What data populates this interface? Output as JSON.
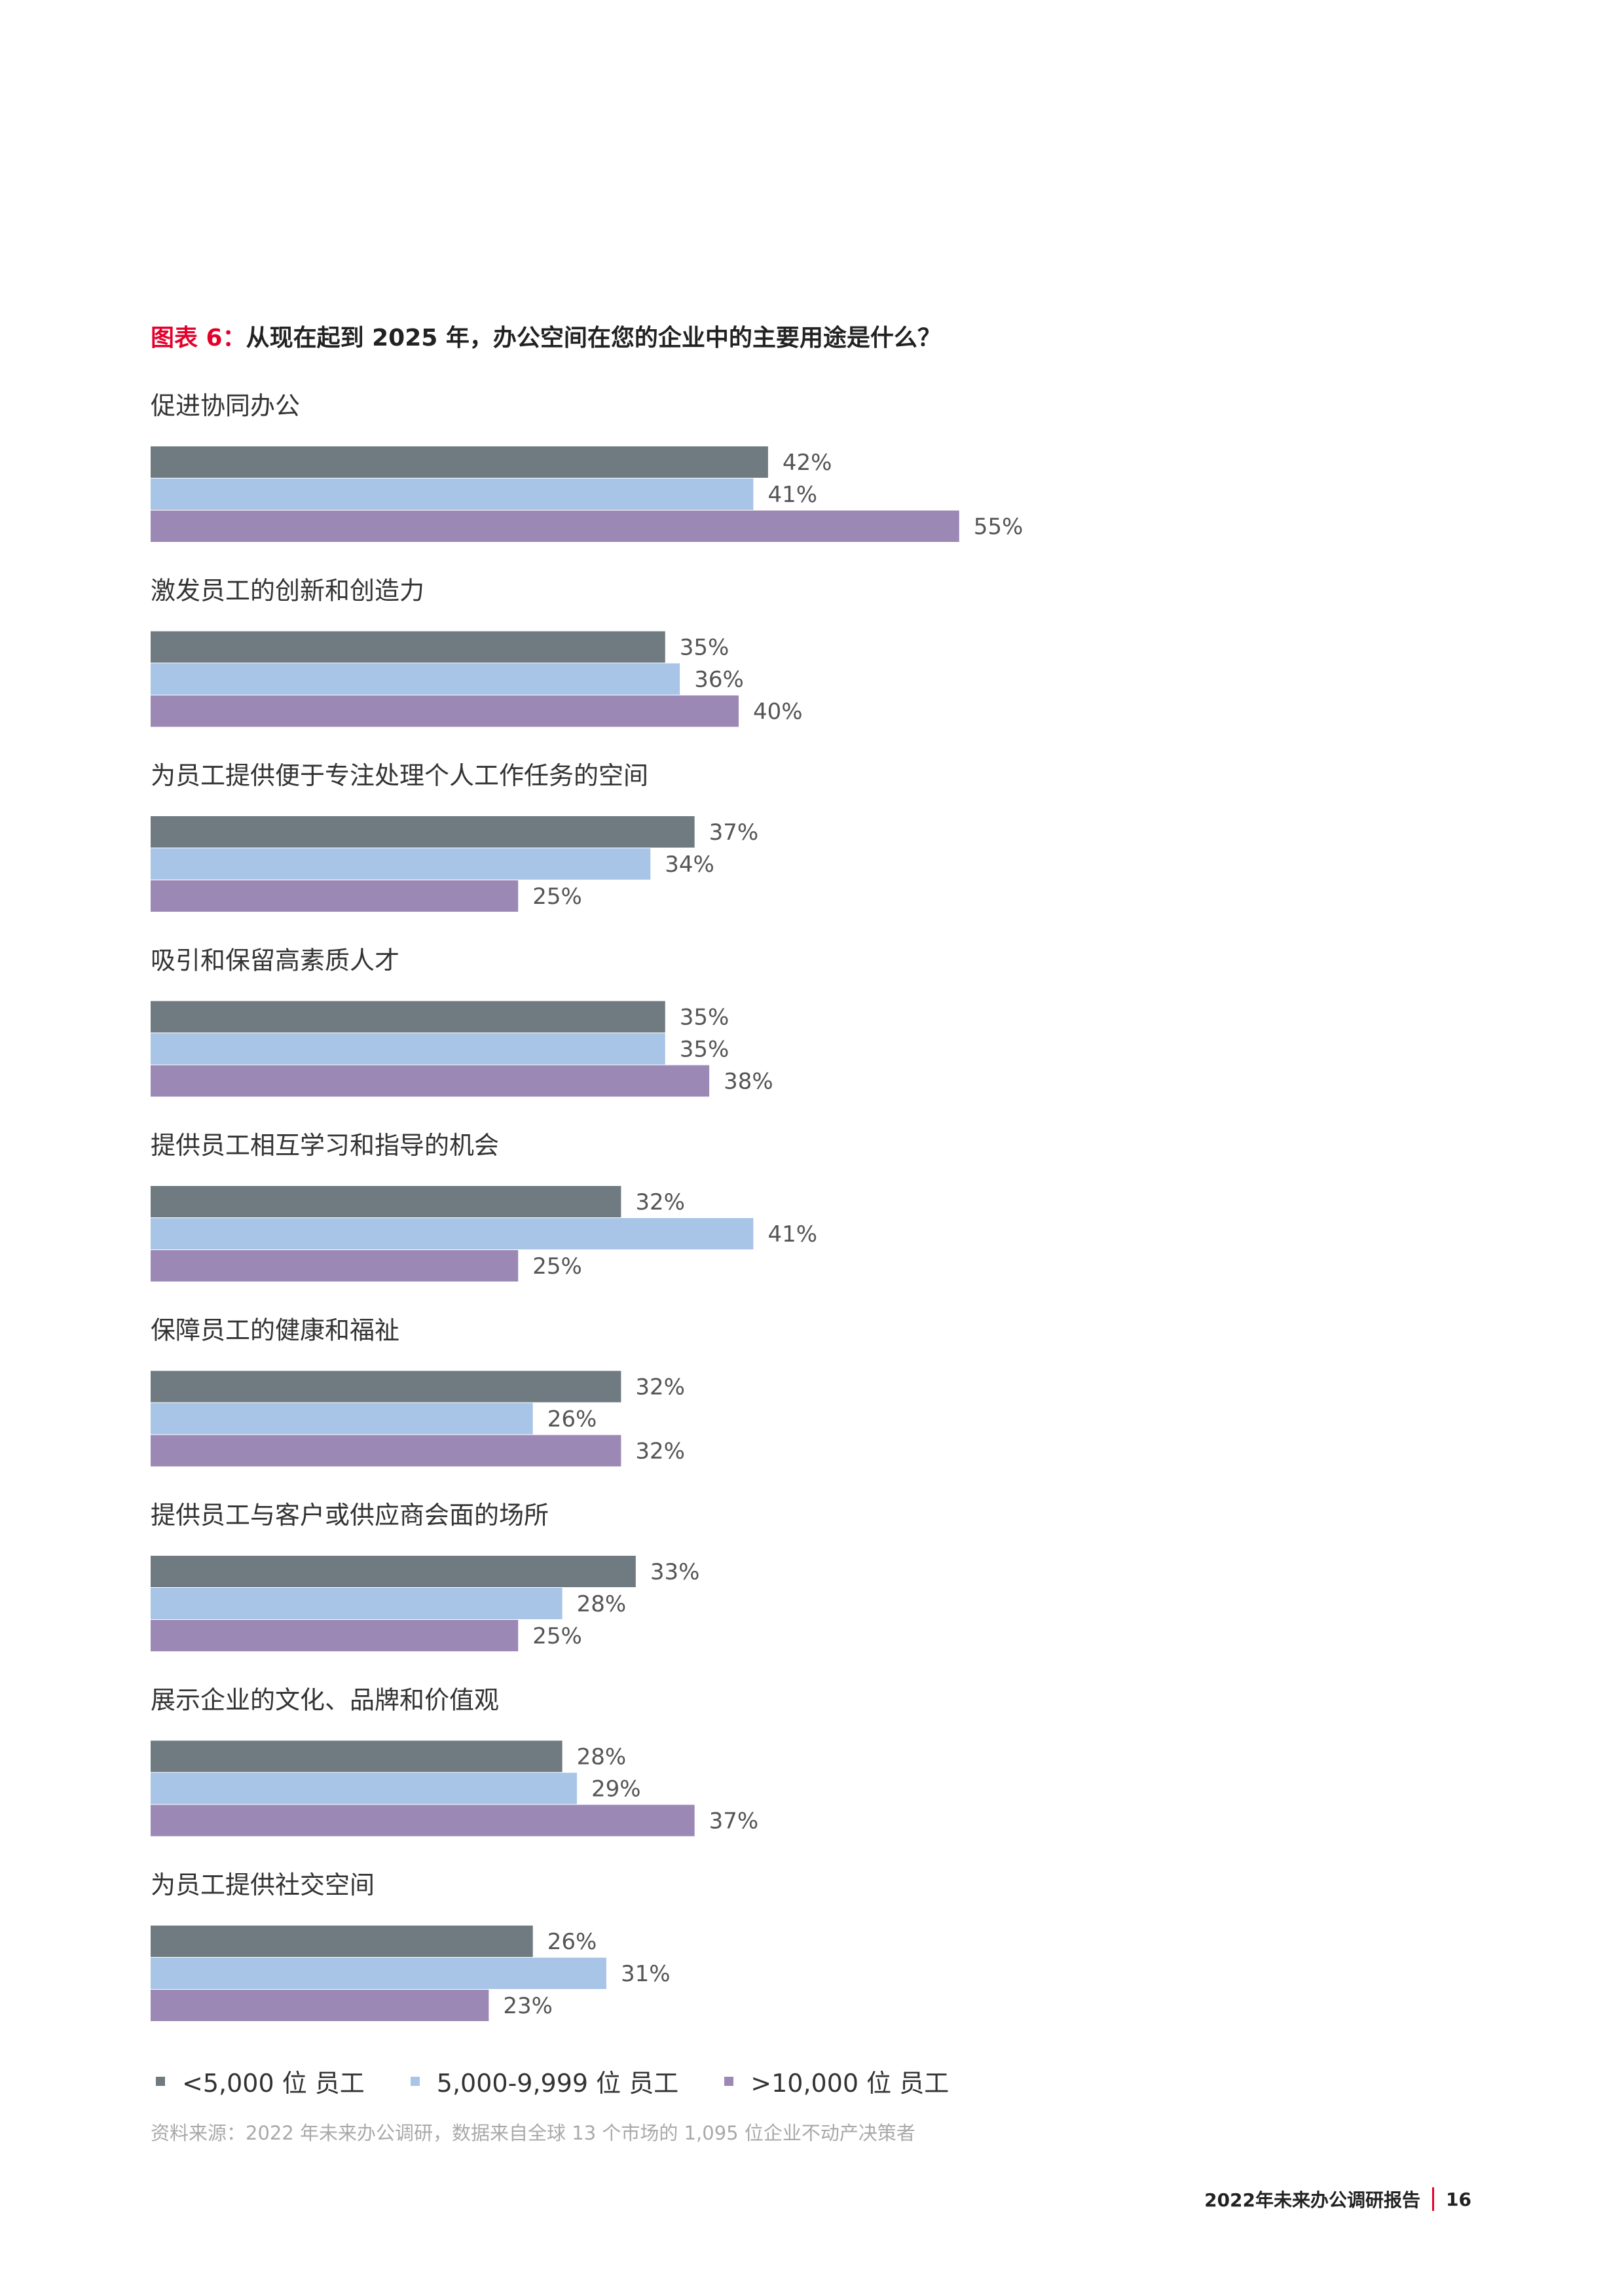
{
  "figure": {
    "label": "图表 6：",
    "question": "从现在起到 2025 年，办公空间在您的企业中的主要用途是什么？"
  },
  "chart_data": {
    "type": "bar",
    "orientation": "horizontal",
    "title": "图表 6：从现在起到 2025 年，办公空间在您的企业中的主要用途是什么？",
    "categories": [
      "促进协同办公",
      "激发员工的创新和创造力",
      "为员工提供便于专注处理个人工作任务的空间",
      "吸引和保留高素质人才",
      "提供员工相互学习和指导的机会",
      "保障员工的健康和福祉",
      "提供员工与客户或供应商会面的场所",
      "展示企业的文化、品牌和价值观",
      "为员工提供社交空间"
    ],
    "series": [
      {
        "name": "<5,000 位 员工",
        "color": "#6f7b80",
        "values": [
          42,
          35,
          37,
          35,
          32,
          32,
          33,
          28,
          26
        ]
      },
      {
        "name": "5,000-9,999 位 员工",
        "color": "#a8c5e8",
        "values": [
          41,
          36,
          34,
          35,
          41,
          26,
          28,
          29,
          31
        ]
      },
      {
        "name": ">10,000 位 员工",
        "color": "#9b88b4",
        "values": [
          55,
          40,
          25,
          38,
          25,
          32,
          25,
          37,
          23
        ]
      }
    ],
    "value_suffix": "%",
    "xlim": [
      0,
      100
    ],
    "grid": false,
    "legend_position": "bottom-left"
  },
  "source_note": "资料来源：2022 年未来办公调研，数据来自全球 13 个市场的 1,095 位企业不动产决策者",
  "footer": {
    "report_title": "2022年未来办公调研报告",
    "page_number": "16"
  }
}
